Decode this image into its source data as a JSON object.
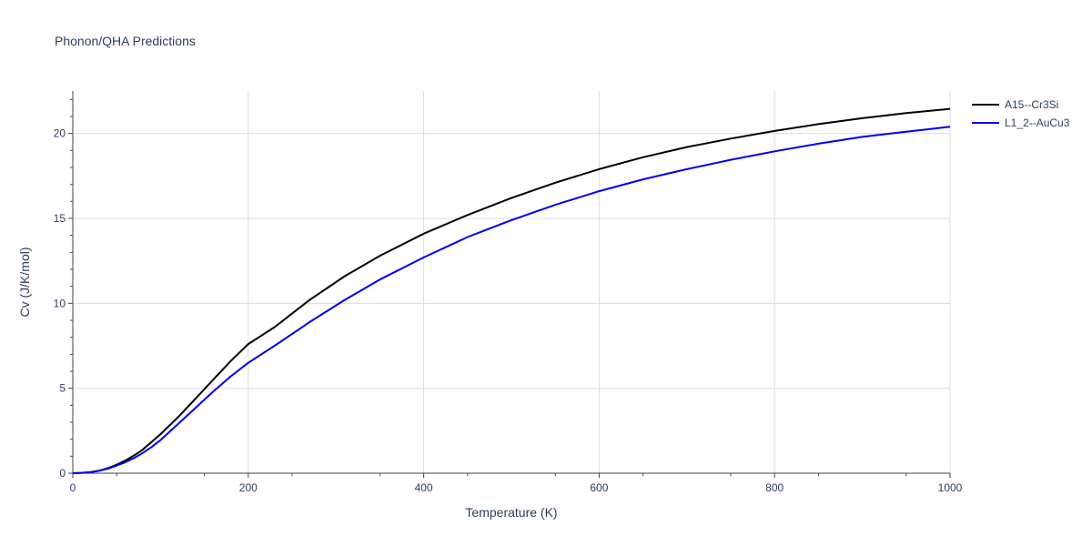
{
  "chart_data": {
    "type": "line",
    "title": "Phonon/QHA Predictions",
    "xlabel": "Temperature (K)",
    "ylabel": "Cv (J/K/mol)",
    "xlim": [
      0,
      1000
    ],
    "ylim": [
      0,
      22.5
    ],
    "x_ticks": [
      0,
      200,
      400,
      600,
      800,
      1000
    ],
    "y_ticks": [
      0,
      5,
      10,
      15,
      20
    ],
    "grid": true,
    "legend_position": "top-right",
    "series": [
      {
        "name": "A15--Cr3Si",
        "color": "#000000",
        "x": [
          0,
          10,
          20,
          30,
          40,
          50,
          60,
          70,
          80,
          90,
          100,
          120,
          140,
          160,
          180,
          200,
          230,
          270,
          310,
          350,
          400,
          450,
          500,
          550,
          600,
          650,
          700,
          750,
          800,
          850,
          900,
          950,
          1000
        ],
        "y": [
          0,
          0.02,
          0.06,
          0.15,
          0.3,
          0.5,
          0.75,
          1.05,
          1.4,
          1.85,
          2.3,
          3.3,
          4.4,
          5.5,
          6.6,
          7.6,
          8.6,
          10.2,
          11.6,
          12.8,
          14.1,
          15.2,
          16.2,
          17.1,
          17.9,
          18.6,
          19.2,
          19.7,
          20.15,
          20.55,
          20.9,
          21.2,
          21.45
        ]
      },
      {
        "name": "L1_2--AuCu3",
        "color": "#0000ee",
        "x": [
          0,
          10,
          20,
          30,
          40,
          50,
          60,
          70,
          80,
          90,
          100,
          120,
          140,
          160,
          180,
          200,
          230,
          270,
          310,
          350,
          400,
          450,
          500,
          550,
          600,
          650,
          700,
          750,
          800,
          850,
          900,
          950,
          1000
        ],
        "y": [
          0,
          0.02,
          0.06,
          0.14,
          0.27,
          0.45,
          0.65,
          0.9,
          1.2,
          1.55,
          1.95,
          2.9,
          3.85,
          4.8,
          5.7,
          6.5,
          7.5,
          8.9,
          10.2,
          11.4,
          12.7,
          13.9,
          14.9,
          15.8,
          16.6,
          17.3,
          17.9,
          18.45,
          18.95,
          19.4,
          19.8,
          20.1,
          20.4
        ]
      }
    ]
  }
}
